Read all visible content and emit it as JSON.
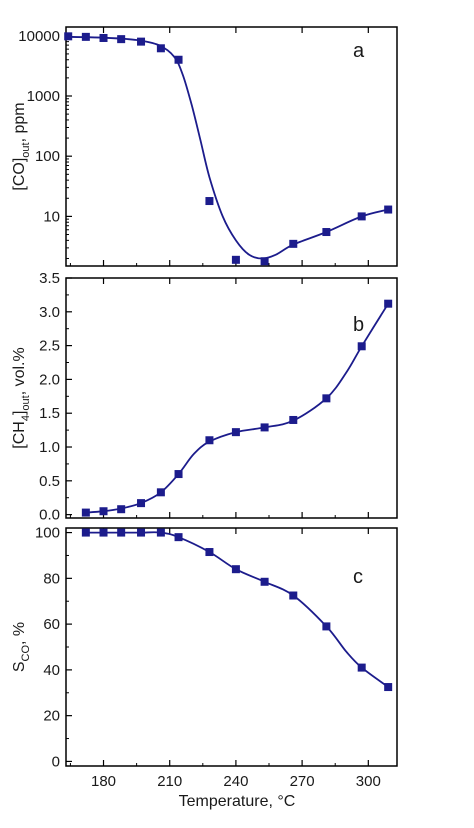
{
  "colors": {
    "series": "#1c1c8c",
    "axis": "#000000",
    "background": "#ffffff"
  },
  "shared_x": {
    "label": "Temperature, °C",
    "xlim": [
      163,
      313
    ],
    "ticks": [
      180,
      210,
      240,
      270,
      300
    ],
    "tick_labels": [
      "180",
      "210",
      "240",
      "270",
      "300"
    ]
  },
  "chart_data": [
    {
      "type": "scatter",
      "panel_label": "a",
      "ylabel_parts": [
        "[CO]",
        "out",
        ", ppm"
      ],
      "yscale": "log",
      "ylim": [
        1.5,
        14000
      ],
      "yticks": [
        10,
        100,
        1000,
        10000
      ],
      "ytick_labels": [
        "10",
        "100",
        "1000",
        "10000"
      ],
      "x": [
        164,
        172,
        180,
        188,
        197,
        206,
        214,
        228,
        240,
        253,
        266,
        281,
        297,
        309
      ],
      "y": [
        9800,
        9600,
        9200,
        8800,
        8000,
        6200,
        4000,
        18,
        1.9,
        1.8,
        3.5,
        5.5,
        10,
        13
      ],
      "curve": {
        "x": [
          164,
          180,
          195,
          205,
          212,
          216,
          220,
          224,
          228,
          234,
          240,
          246,
          252,
          258,
          266,
          281,
          297,
          309
        ],
        "y": [
          9600,
          9300,
          8500,
          7000,
          4500,
          2200,
          700,
          180,
          45,
          10,
          4,
          2.3,
          2.0,
          2.3,
          3.4,
          5.5,
          10,
          13
        ]
      },
      "grid": false,
      "legend": "none"
    },
    {
      "type": "scatter",
      "panel_label": "b",
      "ylabel_parts": [
        "[CH",
        "4",
        "]",
        "out",
        ", vol.%"
      ],
      "yscale": "linear",
      "ylim": [
        -0.05,
        3.5
      ],
      "yticks": [
        0.0,
        0.5,
        1.0,
        1.5,
        2.0,
        2.5,
        3.0,
        3.5
      ],
      "ytick_labels": [
        "0.0",
        "0.5",
        "1.0",
        "1.5",
        "2.0",
        "2.5",
        "3.0",
        "3.5"
      ],
      "x": [
        172,
        180,
        188,
        197,
        206,
        214,
        228,
        240,
        253,
        266,
        281,
        297,
        309
      ],
      "y": [
        0.03,
        0.05,
        0.08,
        0.17,
        0.33,
        0.6,
        1.1,
        1.22,
        1.29,
        1.4,
        1.72,
        2.49,
        3.12
      ],
      "curve": {
        "x": [
          172,
          180,
          188,
          197,
          206,
          214,
          221,
          228,
          240,
          253,
          266,
          281,
          290,
          297,
          309
        ],
        "y": [
          0.03,
          0.05,
          0.09,
          0.17,
          0.33,
          0.6,
          0.9,
          1.08,
          1.22,
          1.29,
          1.39,
          1.72,
          2.1,
          2.49,
          3.12
        ]
      },
      "grid": false,
      "legend": "none"
    },
    {
      "type": "scatter",
      "panel_label": "c",
      "ylabel_parts": [
        "S",
        "CO",
        ", %"
      ],
      "yscale": "linear",
      "ylim": [
        -2,
        102
      ],
      "yticks": [
        0,
        20,
        40,
        60,
        80,
        100
      ],
      "ytick_labels": [
        "0",
        "20",
        "40",
        "60",
        "80",
        "100"
      ],
      "x": [
        172,
        180,
        188,
        197,
        206,
        214,
        228,
        240,
        253,
        266,
        281,
        297,
        309
      ],
      "y": [
        100,
        100,
        100,
        100,
        100,
        98,
        91.5,
        84,
        78.5,
        72.5,
        59,
        41,
        32.5
      ],
      "curve": {
        "x": [
          172,
          180,
          188,
          197,
          206,
          214,
          228,
          240,
          253,
          266,
          281,
          290,
          297,
          309
        ],
        "y": [
          100,
          100,
          100,
          100,
          100,
          98,
          91.5,
          84,
          78.5,
          72.5,
          59,
          48,
          41,
          32.5
        ]
      },
      "grid": false,
      "legend": "none"
    }
  ]
}
